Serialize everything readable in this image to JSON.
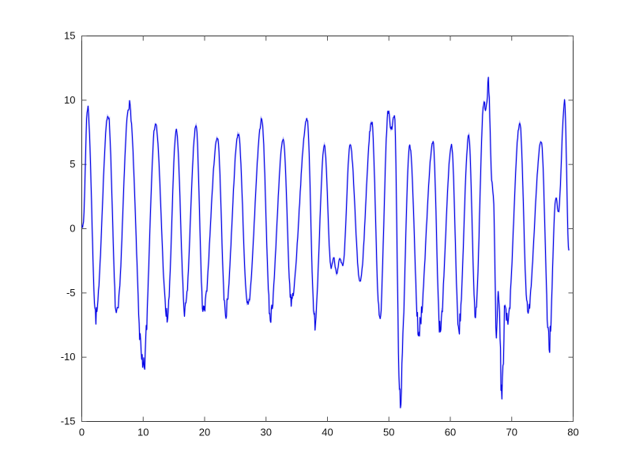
{
  "figure": {
    "background": "#ffffff",
    "title": ""
  },
  "chart_data": {
    "type": "line",
    "title": "",
    "xlabel": "",
    "ylabel": "",
    "xlim": [
      0,
      80
    ],
    "ylim": [
      -15,
      15
    ],
    "x_ticks": [
      0,
      10,
      20,
      30,
      40,
      50,
      60,
      70,
      80
    ],
    "y_ticks": [
      -15,
      -10,
      -5,
      0,
      5,
      10,
      15
    ],
    "grid": false,
    "legend": null,
    "box": true,
    "tick_style": "inward-all-sides",
    "axis_color": "#333333",
    "tick_color": "#555555",
    "label_color": "#111111",
    "series": [
      {
        "name": "signal",
        "color": "#0000e6",
        "waypoints": [
          [
            0,
            0.3
          ],
          [
            0.2,
            0.2
          ],
          [
            0.95,
            9.5
          ],
          [
            2.3,
            -6.8
          ],
          [
            4.3,
            8.9
          ],
          [
            5.7,
            -6.9
          ],
          [
            7.7,
            9.7
          ],
          [
            10.0,
            -11.1
          ],
          [
            12.0,
            8.2
          ],
          [
            13.9,
            -6.9
          ],
          [
            15.4,
            7.6
          ],
          [
            16.8,
            -6.4
          ],
          [
            18.6,
            8.0
          ],
          [
            19.8,
            -6.6
          ],
          [
            22.1,
            7.1
          ],
          [
            23.4,
            -6.5
          ],
          [
            25.5,
            7.4
          ],
          [
            27.0,
            -6.1
          ],
          [
            29.3,
            8.4
          ],
          [
            30.7,
            -6.7
          ],
          [
            32.8,
            6.9
          ],
          [
            34.1,
            -5.6
          ],
          [
            36.7,
            8.5
          ],
          [
            37.9,
            -7.2
          ],
          [
            39.5,
            6.4
          ],
          [
            40.6,
            -3.0
          ],
          [
            41.0,
            -2.3
          ],
          [
            41.5,
            -3.4
          ],
          [
            42.0,
            -2.4
          ],
          [
            42.5,
            -2.9
          ],
          [
            43.7,
            6.5
          ],
          [
            45.3,
            -4.1
          ],
          [
            47.2,
            8.3
          ],
          [
            48.5,
            -7.1
          ],
          [
            49.9,
            9.0
          ],
          [
            50.4,
            7.8
          ],
          [
            50.9,
            8.8
          ],
          [
            51.8,
            -13.2
          ],
          [
            53.4,
            6.4
          ],
          [
            54.9,
            -7.9
          ],
          [
            57.2,
            6.7
          ],
          [
            58.3,
            -7.5
          ],
          [
            60.2,
            6.5
          ],
          [
            61.4,
            -7.7
          ],
          [
            63.0,
            7.2
          ],
          [
            64.1,
            -6.5
          ],
          [
            65.5,
            10.0
          ],
          [
            65.8,
            9.3
          ],
          [
            66.2,
            11.3
          ],
          [
            66.8,
            3.5
          ],
          [
            67.0,
            2.6
          ],
          [
            67.5,
            -7.8
          ],
          [
            67.8,
            -4.8
          ],
          [
            68.4,
            -12.8
          ],
          [
            68.9,
            -6.3
          ],
          [
            69.3,
            -7.4
          ],
          [
            71.3,
            8.2
          ],
          [
            72.6,
            -6.4
          ],
          [
            74.8,
            6.8
          ],
          [
            76.1,
            -8.8
          ],
          [
            77.2,
            2.4
          ],
          [
            77.6,
            1.3
          ],
          [
            78.6,
            9.9
          ],
          [
            79.3,
            -1.7
          ]
        ],
        "noise": {
          "seed": 7,
          "base": 0.13,
          "trough_gain": 0.22,
          "trough_threshold": -4,
          "peak_gain": 0.1,
          "peak_threshold": 7,
          "max_extra": 0.95,
          "samples_per_unit": 12
        }
      }
    ]
  }
}
